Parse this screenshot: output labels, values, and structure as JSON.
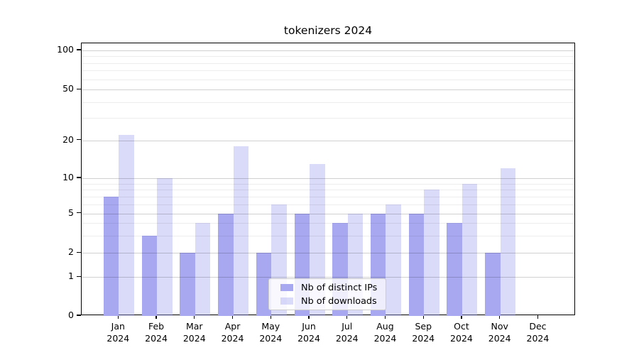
{
  "chart_data": {
    "type": "bar",
    "title": "tokenizers 2024",
    "categories": [
      "Jan",
      "Feb",
      "Mar",
      "Apr",
      "May",
      "Jun",
      "Jul",
      "Aug",
      "Sep",
      "Oct",
      "Nov",
      "Dec"
    ],
    "category_year": "2024",
    "series": [
      {
        "name": "Nb of distinct IPs",
        "color": "#a8a8f1",
        "fill_alpha": 1,
        "values": [
          7,
          3,
          2,
          5,
          2,
          5,
          4,
          5,
          5,
          4,
          2,
          0
        ]
      },
      {
        "name": "Nb of downloads",
        "color": "#a8a8f1",
        "fill_alpha": 0.42,
        "values": [
          22,
          10,
          4,
          18,
          6,
          13,
          5,
          6,
          8,
          9,
          12,
          0
        ]
      }
    ],
    "yscale": "asinh",
    "ylim": [
      0,
      100
    ],
    "yticks": [
      0,
      1,
      2,
      5,
      10,
      20,
      50,
      100
    ],
    "yticks_minor": [
      3,
      4,
      6,
      7,
      8,
      9,
      30,
      40,
      60,
      70,
      80,
      90
    ],
    "grid": true,
    "legend_position": "lower center",
    "background_color": "#ffffff",
    "text_color": "#000000",
    "grid_major_color": "#d1d1d1",
    "grid_minor_color": "#ededed"
  }
}
